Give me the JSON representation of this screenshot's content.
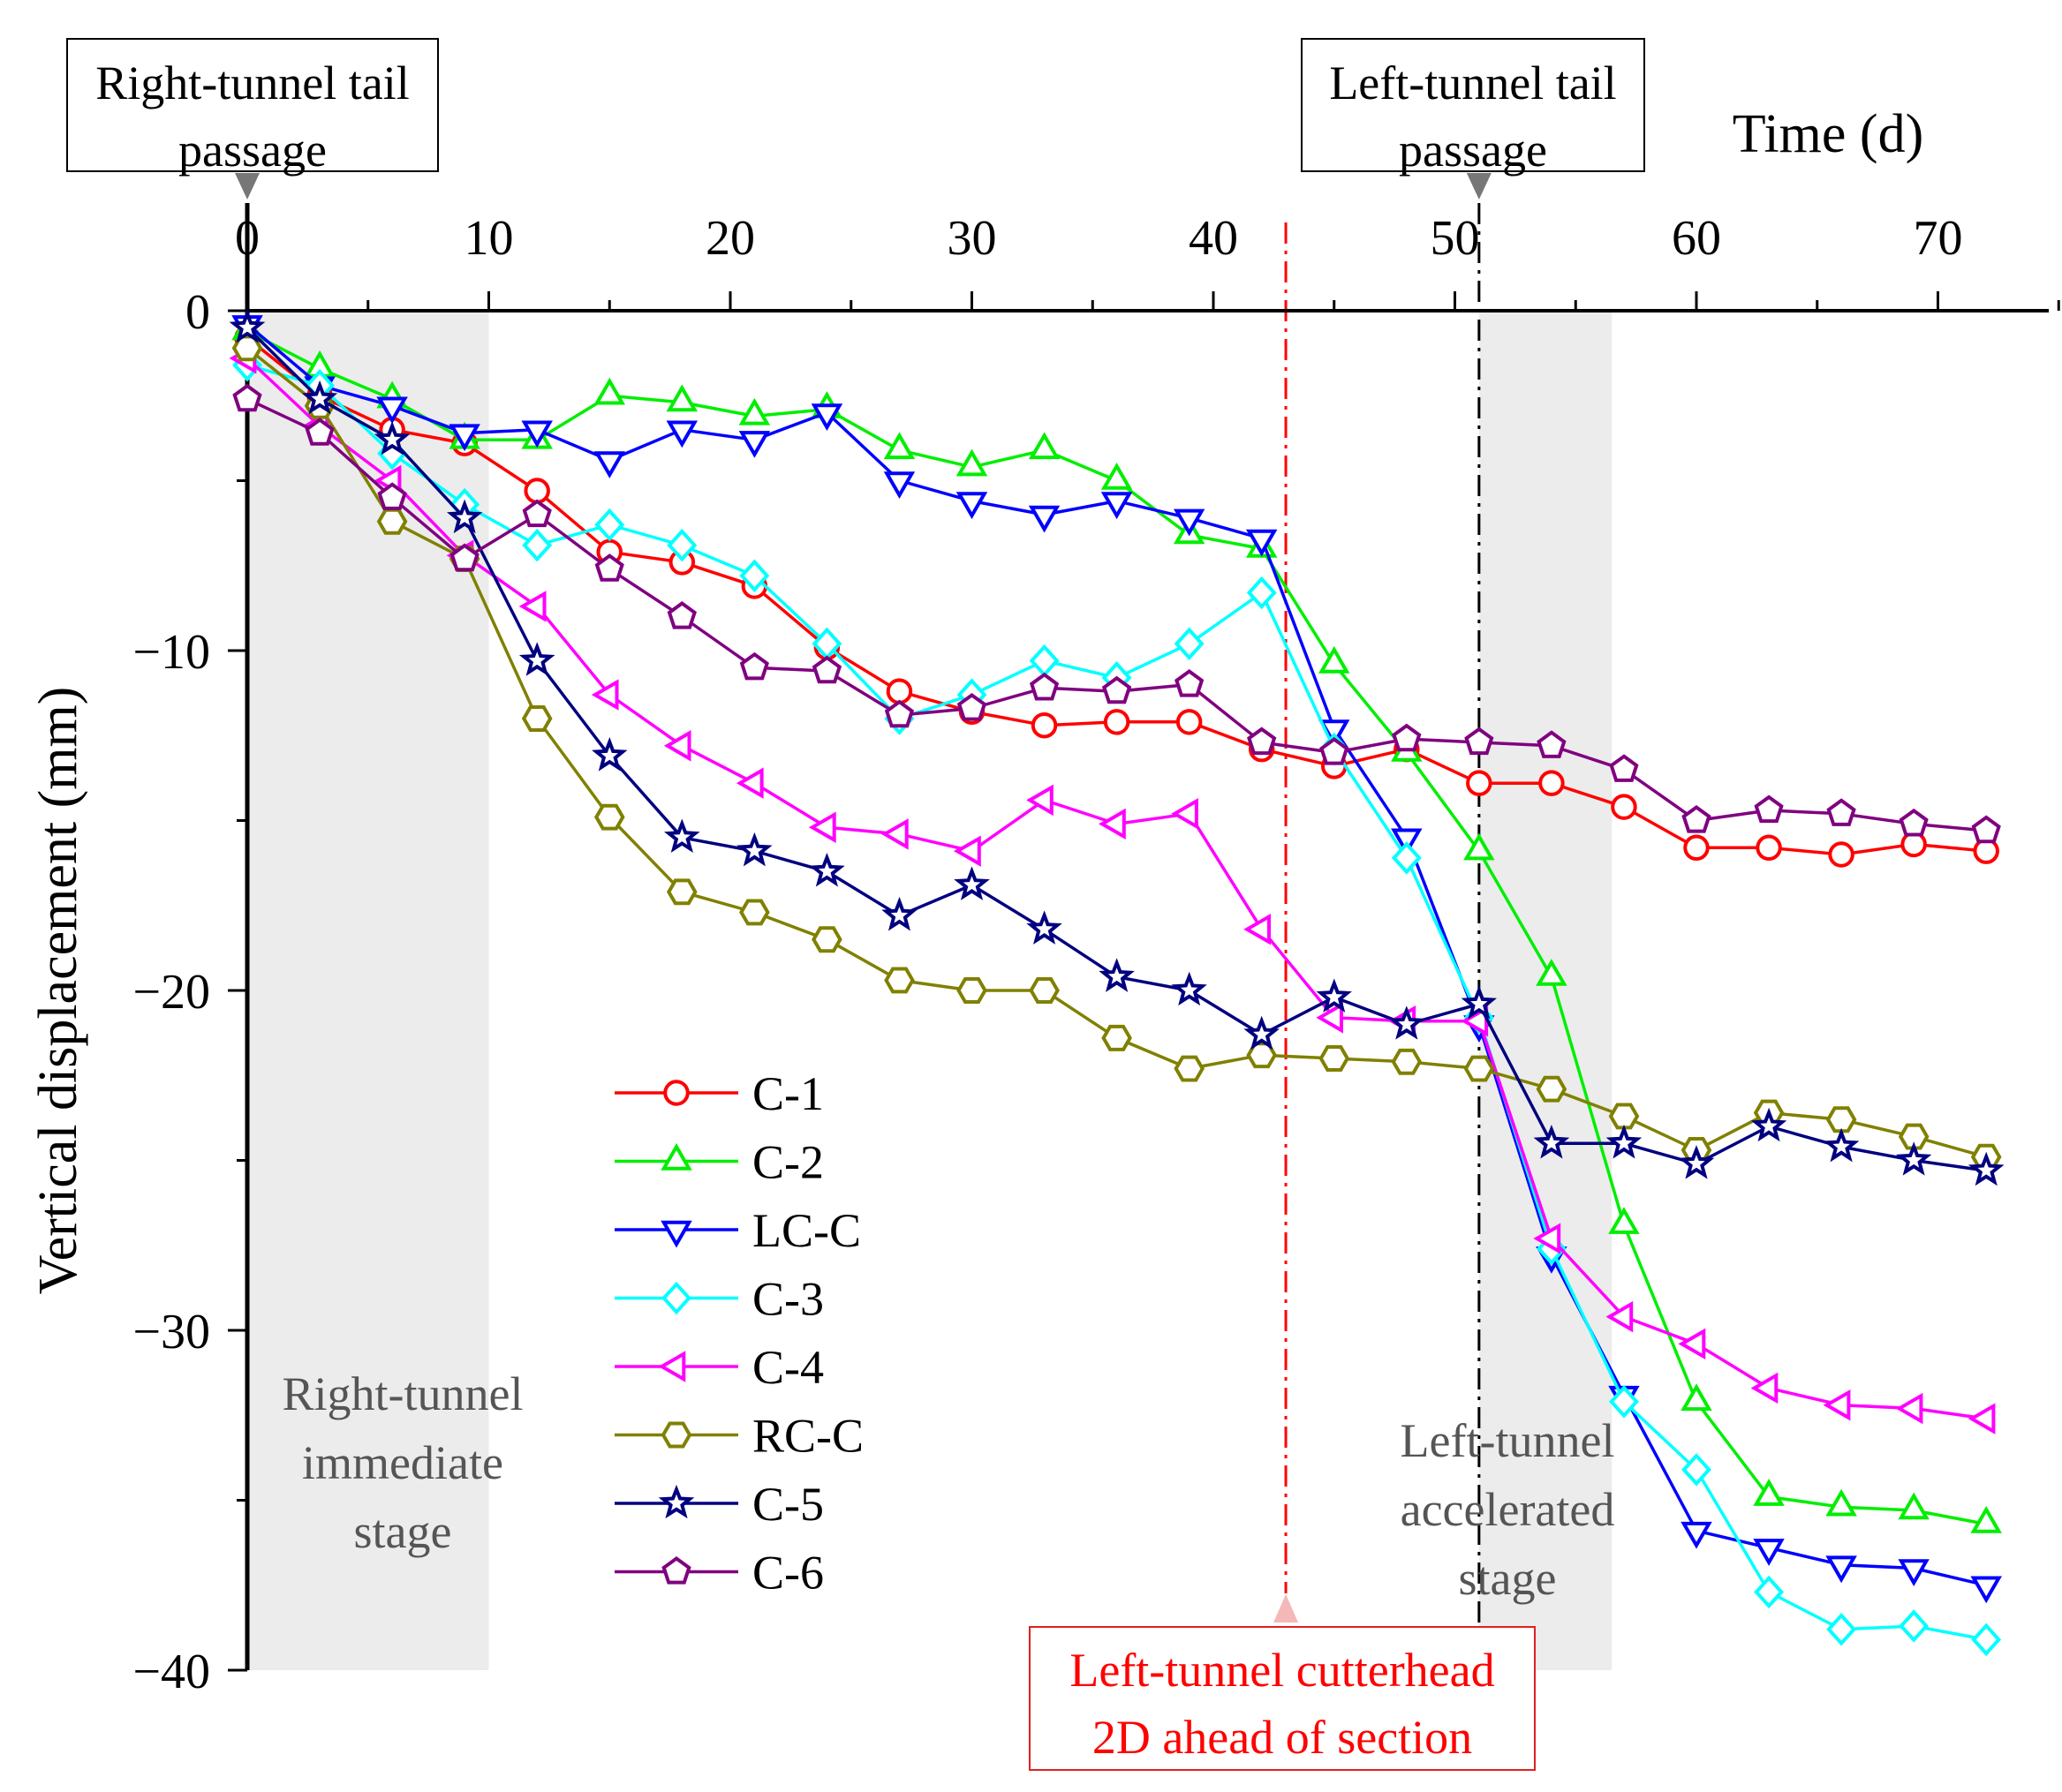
{
  "chart_data": {
    "type": "line",
    "xlabel": "Time (d)",
    "ylabel": "Vertical displacement (mm)",
    "xlim": [
      0,
      75
    ],
    "ylim": [
      -40,
      0
    ],
    "x_ticks": [
      0,
      10,
      20,
      30,
      40,
      50,
      60,
      70
    ],
    "x_tick_labels": [
      "0",
      "10",
      "20",
      "30",
      "40",
      "50",
      "60",
      "70"
    ],
    "y_ticks": [
      0,
      -10,
      -20,
      -30,
      -40
    ],
    "y_tick_labels": [
      "0",
      "−10",
      "−20",
      "−30",
      "−40"
    ],
    "x": [
      0,
      3,
      6,
      9,
      12,
      15,
      18,
      21,
      24,
      27,
      30,
      33,
      36,
      39,
      42,
      45,
      48,
      51,
      54,
      57,
      60,
      63,
      66,
      69,
      72
    ],
    "series": [
      {
        "name": "C-1",
        "color": "#ff0000",
        "marker": "circle",
        "values": [
          -0.8,
          -2.5,
          -3.5,
          -3.9,
          -5.3,
          -7.1,
          -7.4,
          -8.1,
          -9.9,
          -11.2,
          -11.8,
          -12.2,
          -12.1,
          -12.1,
          -12.9,
          -13.4,
          -12.9,
          -13.9,
          -13.9,
          -14.6,
          -15.8,
          -15.8,
          -16.0,
          -15.7,
          -15.9
        ]
      },
      {
        "name": "C-2",
        "color": "#00ee00",
        "marker": "triangle-up",
        "values": [
          -0.6,
          -1.7,
          -2.6,
          -3.8,
          -3.8,
          -2.5,
          -2.7,
          -3.1,
          -2.9,
          -4.1,
          -4.6,
          -4.1,
          -5.0,
          -6.6,
          -7.0,
          -10.4,
          -13.0,
          -15.9,
          -19.6,
          -26.9,
          -32.1,
          -34.9,
          -35.2,
          -35.3,
          -35.7
        ]
      },
      {
        "name": "LC-C",
        "color": "#0000ff",
        "marker": "triangle-down",
        "values": [
          -0.4,
          -2.2,
          -2.8,
          -3.6,
          -3.5,
          -4.4,
          -3.5,
          -3.8,
          -3.0,
          -5.0,
          -5.6,
          -6.0,
          -5.6,
          -6.1,
          -6.7,
          -12.3,
          -15.5,
          -21.0,
          -27.8,
          -31.9,
          -35.9,
          -36.4,
          -36.9,
          -37.0,
          -37.5
        ]
      },
      {
        "name": "C-3",
        "color": "#00ffff",
        "marker": "diamond",
        "values": [
          -1.6,
          -2.2,
          -4.2,
          -5.7,
          -6.9,
          -6.3,
          -6.9,
          -7.8,
          -9.8,
          -12.0,
          -11.3,
          -10.3,
          -10.8,
          -9.8,
          -8.3,
          -12.9,
          -16.1,
          -20.8,
          -27.6,
          -32.1,
          -34.1,
          -37.7,
          -38.8,
          -38.7,
          -39.1
        ]
      },
      {
        "name": "C-4",
        "color": "#ff00ff",
        "marker": "triangle-left",
        "values": [
          -1.4,
          -3.4,
          -5.0,
          -7.2,
          -8.7,
          -11.3,
          -12.8,
          -13.9,
          -15.2,
          -15.4,
          -15.9,
          -14.4,
          -15.1,
          -14.8,
          -18.2,
          -20.8,
          -20.9,
          -20.9,
          -27.3,
          -29.6,
          -30.4,
          -31.7,
          -32.2,
          -32.3,
          -32.6
        ]
      },
      {
        "name": "RC-C",
        "color": "#808000",
        "marker": "hexagon",
        "values": [
          -1.1,
          -2.8,
          -6.2,
          -7.3,
          -12.0,
          -14.9,
          -17.1,
          -17.7,
          -18.5,
          -19.7,
          -20.0,
          -20.0,
          -21.4,
          -22.3,
          -21.9,
          -22.0,
          -22.1,
          -22.3,
          -22.9,
          -23.7,
          -24.7,
          -23.6,
          -23.8,
          -24.3,
          -24.9
        ]
      },
      {
        "name": "C-5",
        "color": "#000080",
        "marker": "star",
        "values": [
          -0.5,
          -2.6,
          -3.8,
          -6.1,
          -10.3,
          -13.1,
          -15.5,
          -15.9,
          -16.5,
          -17.8,
          -16.9,
          -18.2,
          -19.6,
          -20.0,
          -21.3,
          -20.2,
          -21.0,
          -20.4,
          -24.5,
          -24.5,
          -25.1,
          -24.0,
          -24.6,
          -25.0,
          -25.3
        ]
      },
      {
        "name": "C-6",
        "color": "#800080",
        "marker": "pentagon",
        "values": [
          -2.6,
          -3.6,
          -5.5,
          -7.3,
          -6.0,
          -7.6,
          -9.0,
          -10.5,
          -10.6,
          -11.9,
          -11.7,
          -11.1,
          -11.2,
          -11.0,
          -12.7,
          -13.0,
          -12.6,
          -12.7,
          -12.8,
          -13.5,
          -15.0,
          -14.7,
          -14.8,
          -15.1,
          -15.3
        ]
      }
    ],
    "shaded_regions": [
      {
        "x_range": [
          0,
          10
        ],
        "label_lines": [
          "Right-tunnel",
          "immediate",
          "stage"
        ]
      },
      {
        "x_range": [
          51,
          56.5
        ],
        "label_lines": [
          "Left-tunnel",
          "accelerated",
          "stage"
        ]
      }
    ],
    "vertical_lines": [
      {
        "x": 43,
        "color": "#ff0000",
        "style": "dash-dot",
        "label_lines": [
          "Left-tunnel cutterhead",
          "2D ahead of section"
        ]
      },
      {
        "x": 51,
        "color": "#000000",
        "style": "dash-dot",
        "label_lines": [
          "Left-tunnel tail",
          "passage"
        ]
      }
    ],
    "top_annotations": [
      {
        "x": 0,
        "label_lines": [
          "Right-tunnel tail",
          "passage"
        ]
      }
    ],
    "legend_position": "center-left"
  }
}
